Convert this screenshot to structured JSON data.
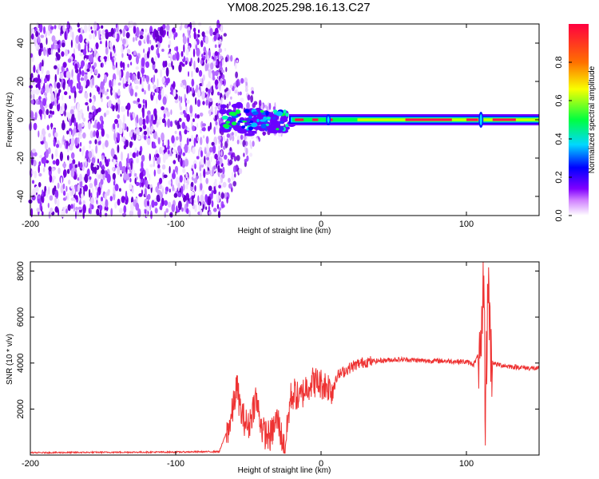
{
  "title": "YM08.2025.298.16.13.C27",
  "chart_data": [
    {
      "type": "heatmap",
      "name": "spectrogram",
      "xlabel": "Height of straight line (km)",
      "ylabel": "Frequency (Hz)",
      "xlim": [
        -200,
        150
      ],
      "ylim": [
        -50,
        50
      ],
      "xticks": [
        -200,
        -100,
        0,
        100
      ],
      "yticks": [
        40,
        20,
        0,
        -20,
        -40
      ],
      "colorbar": {
        "label": "Normalized spectral amplitude",
        "range": [
          0.0,
          1.0
        ],
        "ticks": [
          "0.0",
          "0.2",
          "0.4",
          "0.6",
          "0.8"
        ],
        "colors": [
          "#ffffff",
          "#b000ff",
          "#0000ff",
          "#00e0ff",
          "#00ff30",
          "#ffff00",
          "#ff7000",
          "#ff0040"
        ]
      },
      "regions": [
        {
          "x": [
            -200,
            -68
          ],
          "desc": "broadband noise across all frequencies",
          "amplitude": 0.15
        },
        {
          "x": [
            -68,
            -20
          ],
          "desc": "signal onset near 0 Hz",
          "amplitude": 0.35
        },
        {
          "x": [
            -20,
            150
          ],
          "desc": "narrow band centered at 0 Hz",
          "amplitude": 0.9
        }
      ]
    },
    {
      "type": "line",
      "name": "snr",
      "xlabel": "Height of straight line (km)",
      "ylabel": "SNR (10 * v/v)",
      "xlim": [
        -200,
        150
      ],
      "ylim": [
        0,
        8400
      ],
      "xticks": [
        -200,
        -100,
        0,
        100
      ],
      "yticks": [
        8000,
        6000,
        4000,
        2000
      ],
      "color": "#ee3333",
      "series": [
        {
          "name": "SNR",
          "x": [
            -200,
            -150,
            -100,
            -70,
            -62,
            -58,
            -55,
            -50,
            -45,
            -40,
            -35,
            -30,
            -25,
            -21,
            -18,
            -15,
            -10,
            -5,
            0,
            5,
            8,
            10,
            15,
            20,
            25,
            30,
            40,
            50,
            60,
            70,
            80,
            90,
            100,
            105,
            108,
            110,
            112,
            113,
            115,
            117,
            120,
            130,
            140,
            150
          ],
          "y": [
            100,
            120,
            130,
            150,
            1500,
            3000,
            1800,
            1200,
            2500,
            1000,
            800,
            1600,
            200,
            2500,
            2700,
            2400,
            3000,
            3200,
            3100,
            3000,
            2800,
            3400,
            3600,
            3800,
            3950,
            4050,
            4100,
            4150,
            4150,
            4100,
            4100,
            4080,
            4050,
            3950,
            4300,
            3600,
            8200,
            1500,
            7800,
            4100,
            3950,
            3850,
            3800,
            3750
          ]
        }
      ]
    }
  ]
}
